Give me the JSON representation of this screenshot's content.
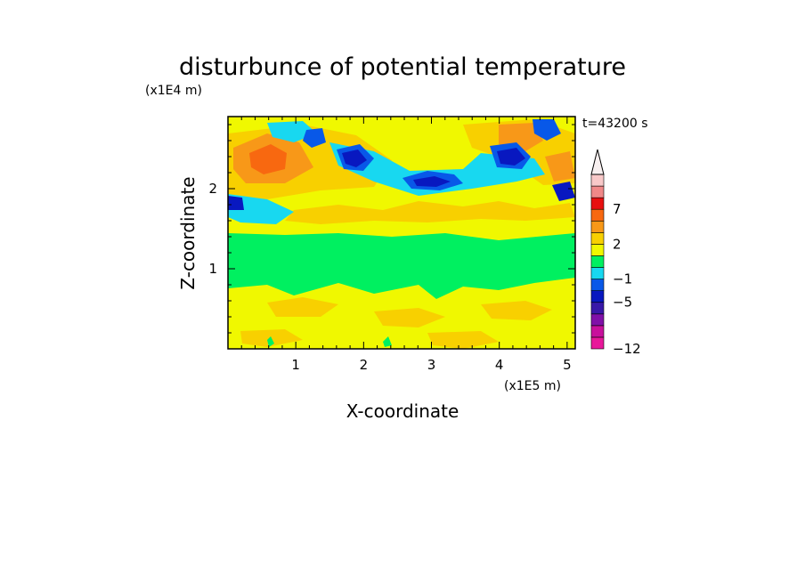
{
  "chart_data": {
    "type": "heatmap",
    "title": "disturbunce of potential temperature",
    "xlabel": "X-coordinate",
    "ylabel": "Z-coordinate",
    "x_scale_label": "(x1E5 m)",
    "y_scale_label": "(x1E4 m)",
    "time_label": "t=43200 s",
    "xlim": [
      0,
      5.12
    ],
    "ylim": [
      0,
      2.9
    ],
    "xticks": [
      "1",
      "2",
      "3",
      "4",
      "5"
    ],
    "yticks": [
      "1",
      "2"
    ],
    "colorbar": {
      "labels": [
        "7",
        "2",
        "−1",
        "−5",
        "−12"
      ],
      "levels": [
        -12,
        -10,
        -8,
        -6,
        -5,
        -3,
        -1,
        0,
        1,
        2,
        3,
        5,
        7,
        9,
        11
      ],
      "colors": [
        "#e8189a",
        "#c8109c",
        "#8010a8",
        "#3818a8",
        "#0818c0",
        "#0858e8",
        "#18d8f0",
        "#00f060",
        "#f0f800",
        "#f8d000",
        "#f89818",
        "#f86810",
        "#e81010",
        "#f08888",
        "#f8c8c8"
      ],
      "extend_max": true
    },
    "field_summary": [
      {
        "region": "z 0 to 0.9 (x1E4 m)",
        "value_range": "0 to 2"
      },
      {
        "region": "z 0.9 to 1.7 (x1E4 m)",
        "value_range": "-1 to 0"
      },
      {
        "region": "z 1.7 to 2.9 (x1E4 m)",
        "value_range": "-6 to 5"
      }
    ]
  }
}
